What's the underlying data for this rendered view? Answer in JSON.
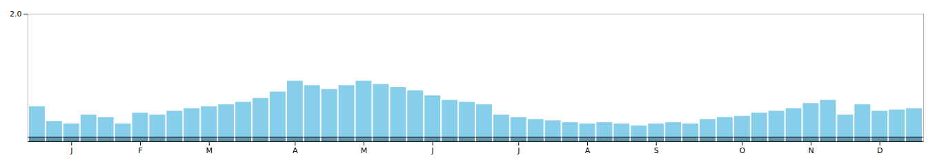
{
  "chart_data": {
    "type": "bar",
    "categories": [
      null,
      null,
      "J",
      null,
      null,
      null,
      "F",
      null,
      null,
      null,
      "M",
      null,
      null,
      null,
      null,
      "A",
      null,
      null,
      null,
      "M",
      null,
      null,
      null,
      "J",
      null,
      null,
      null,
      null,
      "J",
      null,
      null,
      null,
      "A",
      null,
      null,
      null,
      "S",
      null,
      null,
      null,
      null,
      "O",
      null,
      null,
      null,
      "N",
      null,
      null,
      null,
      "D",
      null,
      null
    ],
    "values": [
      0.55,
      0.32,
      0.28,
      0.42,
      0.38,
      0.28,
      0.45,
      0.42,
      0.48,
      0.52,
      0.55,
      0.58,
      0.62,
      0.68,
      0.78,
      0.95,
      0.88,
      0.82,
      0.88,
      0.95,
      0.9,
      0.85,
      0.8,
      0.72,
      0.65,
      0.62,
      0.58,
      0.42,
      0.38,
      0.35,
      0.33,
      0.3,
      0.28,
      0.3,
      0.28,
      0.25,
      0.28,
      0.3,
      0.28,
      0.35,
      0.38,
      0.4,
      0.45,
      0.48,
      0.52,
      0.6,
      0.65,
      0.42,
      0.58,
      0.48,
      0.5,
      0.52
    ],
    "color": "#87CEEB",
    "ylim": [
      0,
      2
    ],
    "yticks": [
      2
    ],
    "baseline": 0.07
  }
}
